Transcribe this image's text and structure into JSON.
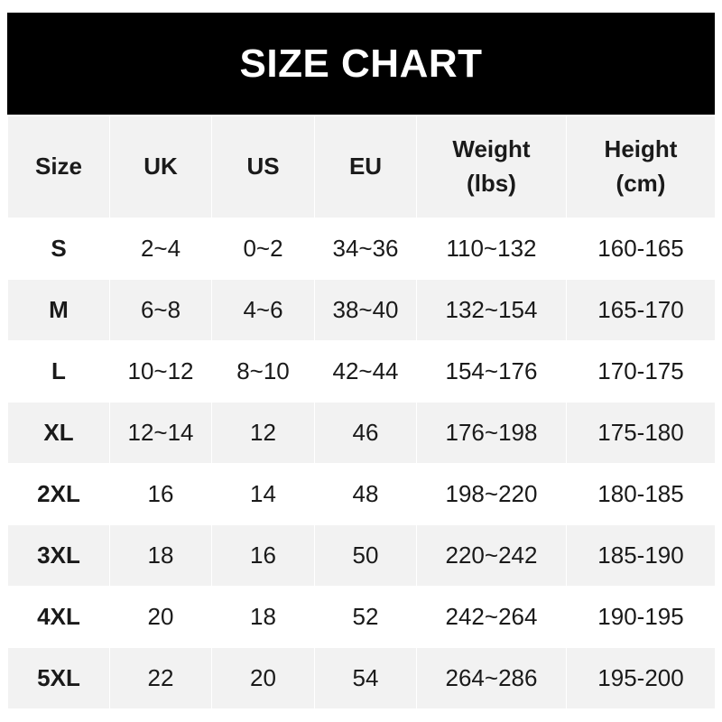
{
  "title": "SIZE CHART",
  "columns": [
    "Size",
    "UK",
    "US",
    "EU",
    "Weight\n(lbs)",
    "Height\n(cm)"
  ],
  "rows": [
    [
      "S",
      "2~4",
      "0~2",
      "34~36",
      "110~132",
      "160-165"
    ],
    [
      "M",
      "6~8",
      "4~6",
      "38~40",
      "132~154",
      "165-170"
    ],
    [
      "L",
      "10~12",
      "8~10",
      "42~44",
      "154~176",
      "170-175"
    ],
    [
      "XL",
      "12~14",
      "12",
      "46",
      "176~198",
      "175-180"
    ],
    [
      "2XL",
      "16",
      "14",
      "48",
      "198~220",
      "180-185"
    ],
    [
      "3XL",
      "18",
      "16",
      "50",
      "220~242",
      "185-190"
    ],
    [
      "4XL",
      "20",
      "18",
      "52",
      "242~264",
      "190-195"
    ],
    [
      "5XL",
      "22",
      "20",
      "54",
      "264~286",
      "195-200"
    ]
  ],
  "colors": {
    "banner": "#000000",
    "header_bg": "#f2f2f2",
    "alt_row_bg": "#f2f2f2"
  }
}
